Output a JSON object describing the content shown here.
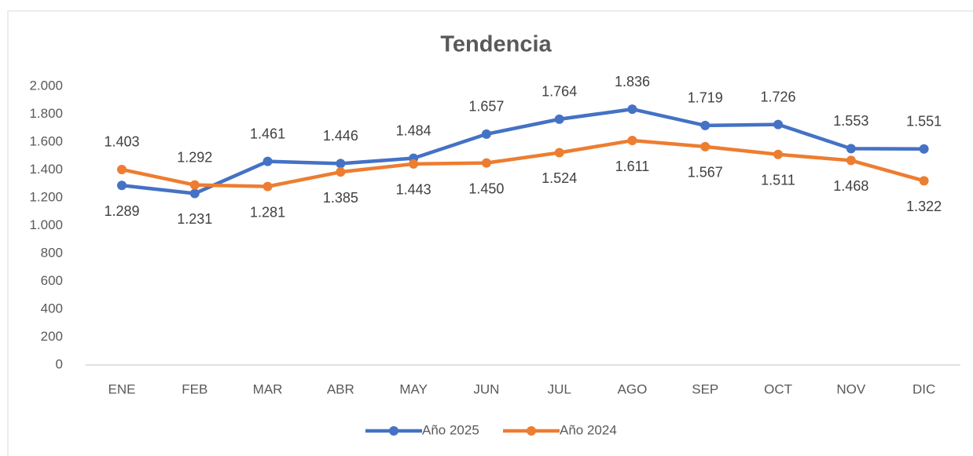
{
  "chart_data": {
    "type": "line",
    "title": "Tendencia",
    "categories": [
      "ENE",
      "FEB",
      "MAR",
      "ABR",
      "MAY",
      "JUN",
      "JUL",
      "AGO",
      "SEP",
      "OCT",
      "NOV",
      "DIC"
    ],
    "series": [
      {
        "name": "Año 2025",
        "color": "#4472c4",
        "values": [
          1289,
          1231,
          1461,
          1446,
          1484,
          1657,
          1764,
          1836,
          1719,
          1726,
          1553,
          1551
        ],
        "value_labels": [
          "1.289",
          "1.231",
          "1.461",
          "1.446",
          "1.484",
          "1.657",
          "1.764",
          "1.836",
          "1.719",
          "1.726",
          "1.553",
          "1.551"
        ]
      },
      {
        "name": "Año 2024",
        "color": "#ed7d31",
        "values": [
          1403,
          1292,
          1281,
          1385,
          1443,
          1450,
          1524,
          1611,
          1567,
          1511,
          1468,
          1322
        ],
        "value_labels": [
          "1.403",
          "1.292",
          "1.281",
          "1.385",
          "1.443",
          "1.450",
          "1.524",
          "1.611",
          "1.567",
          "1.511",
          "1.468",
          "1.322"
        ]
      }
    ],
    "ylim": [
      0,
      2000
    ],
    "yticks": [
      0,
      200,
      400,
      600,
      800,
      {
        "value": 1000,
        "label": "1.000"
      },
      {
        "value": 1200,
        "label": "1.200"
      },
      {
        "value": 1400,
        "label": "1.400"
      },
      {
        "value": 1600,
        "label": "1.600"
      },
      {
        "value": 1800,
        "label": "1.800"
      },
      {
        "value": 2000,
        "label": "2.000"
      }
    ],
    "legend": "bottom"
  }
}
